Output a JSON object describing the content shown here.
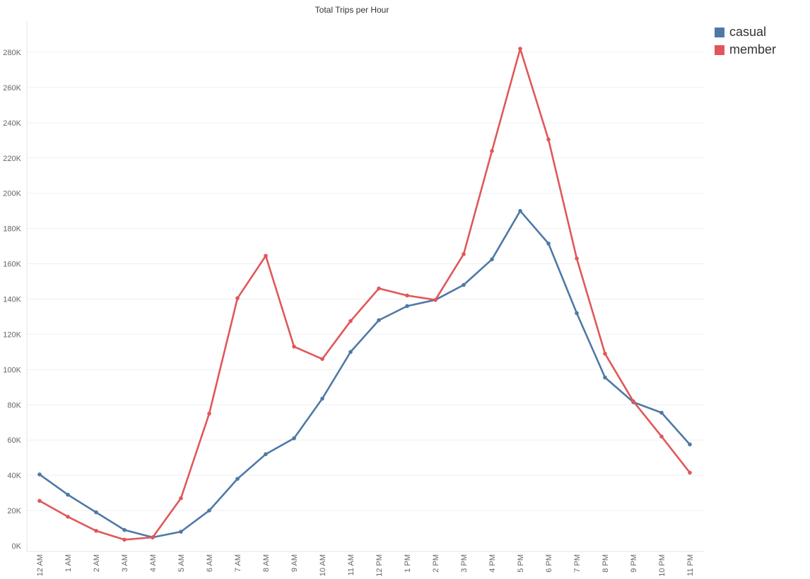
{
  "chart_data": {
    "type": "line",
    "title": "Total Trips per Hour",
    "xlabel": "",
    "ylabel": "",
    "categories": [
      "12 AM",
      "1 AM",
      "2 AM",
      "3 AM",
      "4 AM",
      "5 AM",
      "6 AM",
      "7 AM",
      "8 AM",
      "9 AM",
      "10 AM",
      "11 AM",
      "12 PM",
      "1 PM",
      "2 PM",
      "3 PM",
      "4 PM",
      "5 PM",
      "6 PM",
      "7 PM",
      "8 PM",
      "9 PM",
      "10 PM",
      "11 PM"
    ],
    "ylim": [
      0,
      290000
    ],
    "yticks": [
      0,
      20000,
      40000,
      60000,
      80000,
      100000,
      120000,
      140000,
      160000,
      180000,
      200000,
      220000,
      240000,
      260000,
      280000
    ],
    "ytick_labels": [
      "0K",
      "20K",
      "40K",
      "60K",
      "80K",
      "100K",
      "120K",
      "140K",
      "160K",
      "180K",
      "200K",
      "220K",
      "240K",
      "260K",
      "280K"
    ],
    "grid": true,
    "legend_position": "top-right",
    "series": [
      {
        "name": "casual",
        "color": "#4E79A7",
        "values": [
          40500,
          29000,
          19000,
          9000,
          4800,
          8000,
          20000,
          38000,
          52000,
          61000,
          83500,
          110000,
          128000,
          136000,
          139500,
          148000,
          162500,
          190000,
          171500,
          132000,
          95500,
          81500,
          75500,
          57500
        ]
      },
      {
        "name": "member",
        "color": "#E15759",
        "values": [
          25500,
          16500,
          8500,
          3500,
          4800,
          27000,
          75000,
          140500,
          164500,
          113000,
          106000,
          127500,
          146000,
          142000,
          139500,
          165500,
          224000,
          282000,
          230500,
          163000,
          109000,
          82000,
          62000,
          41500
        ]
      }
    ]
  }
}
